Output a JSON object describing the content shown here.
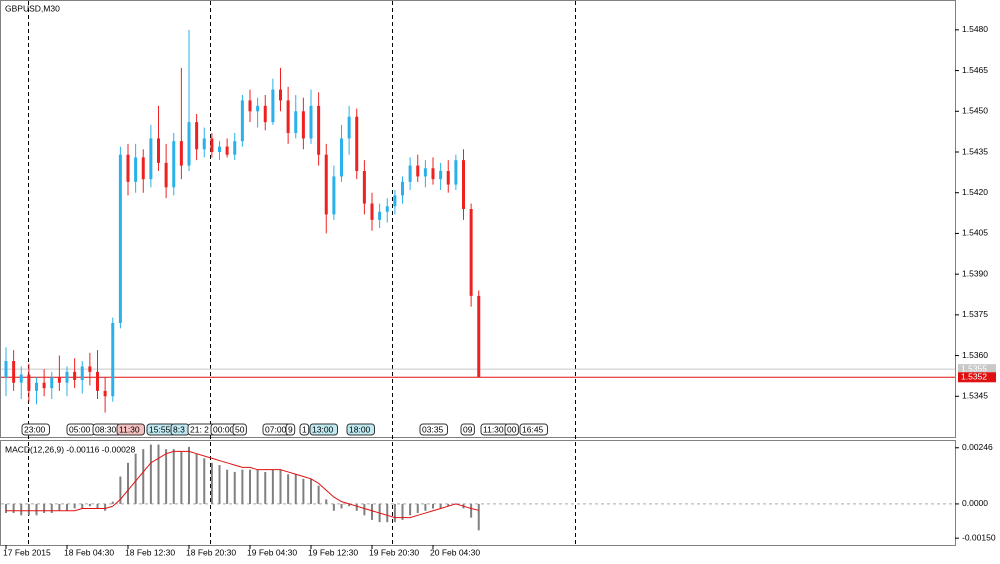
{
  "chart_data": [
    {
      "type": "candlestick",
      "title": "GBPUSD,M30",
      "categories": [
        "17 Feb 2015",
        null,
        null,
        null,
        null,
        null,
        null,
        null,
        "18 Feb 04:30",
        null,
        null,
        null,
        null,
        null,
        null,
        null,
        "18 Feb 12:30",
        null,
        null,
        null,
        null,
        null,
        null,
        null,
        "18 Feb 20:30",
        null,
        null,
        null,
        null,
        null,
        null,
        null,
        "19 Feb 04:30",
        null,
        null,
        null,
        null,
        null,
        null,
        null,
        "19 Feb 12:30",
        null,
        null,
        null,
        null,
        null,
        null,
        null,
        "19 Feb 20:30",
        null,
        null,
        null,
        null,
        null,
        null,
        null,
        "20 Feb 04:30",
        null,
        null,
        null,
        null,
        null,
        null
      ],
      "open": [
        1.5352,
        1.5358,
        1.535,
        1.5353,
        1.5347,
        1.535,
        1.5348,
        1.5352,
        1.535,
        1.5354,
        1.5351,
        1.5356,
        1.5354,
        1.5347,
        1.5345,
        1.5372,
        1.5434,
        1.5424,
        1.5433,
        1.5425,
        1.544,
        1.5431,
        1.5422,
        1.5439,
        1.543,
        1.5446,
        1.5436,
        1.544,
        1.5435,
        1.5437,
        1.5434,
        1.5439,
        1.5454,
        1.545,
        1.5452,
        1.5446,
        1.5458,
        1.5454,
        1.5442,
        1.545,
        1.544,
        1.5452,
        1.5434,
        1.5412,
        1.5426,
        1.544,
        1.5448,
        1.5428,
        1.5416,
        1.541,
        1.5413,
        1.5415,
        1.5419,
        1.5424,
        1.543,
        1.5426,
        1.5429,
        1.5425,
        1.5428,
        1.5423,
        1.5432,
        1.5414,
        1.5382
      ],
      "high": [
        1.5363,
        1.5362,
        1.5356,
        1.5357,
        1.5352,
        1.5355,
        1.5354,
        1.536,
        1.5356,
        1.5359,
        1.5358,
        1.5361,
        1.5362,
        1.5352,
        1.5374,
        1.5437,
        1.5438,
        1.5438,
        1.5436,
        1.5445,
        1.5452,
        1.5438,
        1.5442,
        1.5466,
        1.548,
        1.5449,
        1.5444,
        1.5442,
        1.5439,
        1.544,
        1.5442,
        1.5456,
        1.5458,
        1.5455,
        1.5456,
        1.5462,
        1.5466,
        1.5459,
        1.5456,
        1.5455,
        1.5458,
        1.5457,
        1.5438,
        1.543,
        1.5445,
        1.5452,
        1.5451,
        1.5432,
        1.542,
        1.5416,
        1.5418,
        1.5421,
        1.5426,
        1.5433,
        1.5434,
        1.5432,
        1.5433,
        1.5431,
        1.5432,
        1.5434,
        1.5436,
        1.5416,
        1.5384
      ],
      "low": [
        1.5345,
        1.5347,
        1.5344,
        1.5343,
        1.5342,
        1.5345,
        1.5344,
        1.5347,
        1.5345,
        1.5348,
        1.5346,
        1.5349,
        1.5344,
        1.5339,
        1.5343,
        1.537,
        1.5419,
        1.542,
        1.542,
        1.5422,
        1.5428,
        1.5418,
        1.5419,
        1.5425,
        1.5428,
        1.5432,
        1.5433,
        1.5433,
        1.5432,
        1.5433,
        1.5432,
        1.5437,
        1.5446,
        1.5444,
        1.5443,
        1.5445,
        1.545,
        1.5438,
        1.544,
        1.5436,
        1.5438,
        1.543,
        1.5405,
        1.541,
        1.5424,
        1.5434,
        1.5425,
        1.5412,
        1.5406,
        1.5407,
        1.5409,
        1.5412,
        1.5416,
        1.5421,
        1.5424,
        1.5422,
        1.5423,
        1.5421,
        1.542,
        1.5421,
        1.541,
        1.5378,
        1.5352
      ],
      "close": [
        1.5358,
        1.535,
        1.5353,
        1.5347,
        1.535,
        1.5348,
        1.5352,
        1.535,
        1.5354,
        1.5351,
        1.5356,
        1.5354,
        1.5347,
        1.5345,
        1.5372,
        1.5434,
        1.5424,
        1.5433,
        1.5425,
        1.544,
        1.5431,
        1.5422,
        1.5439,
        1.543,
        1.5446,
        1.5436,
        1.544,
        1.5435,
        1.5437,
        1.5434,
        1.5439,
        1.5454,
        1.545,
        1.5452,
        1.5446,
        1.5458,
        1.5454,
        1.5442,
        1.545,
        1.544,
        1.5452,
        1.5434,
        1.5412,
        1.5426,
        1.544,
        1.5448,
        1.5428,
        1.5416,
        1.541,
        1.5413,
        1.5415,
        1.5419,
        1.5424,
        1.543,
        1.5426,
        1.5429,
        1.5425,
        1.5428,
        1.5423,
        1.5432,
        1.5414,
        1.5382,
        1.5352
      ],
      "up_color": "#2ab0ea",
      "down_color": "#ee2020",
      "ylim": [
        1.533,
        1.5491
      ],
      "yticks": [
        {
          "value": 1.548,
          "label": "1.5480"
        },
        {
          "value": 1.5465,
          "label": "1.5465"
        },
        {
          "value": 1.545,
          "label": "1.5450"
        },
        {
          "value": 1.5435,
          "label": "1.5435"
        },
        {
          "value": 1.542,
          "label": "1.5420"
        },
        {
          "value": 1.5405,
          "label": "1.5405"
        },
        {
          "value": 1.539,
          "label": "1.5390"
        },
        {
          "value": 1.5375,
          "label": "1.5375"
        },
        {
          "value": 1.536,
          "label": "1.5360"
        },
        {
          "value": 1.5345,
          "label": "1.5345"
        }
      ],
      "price_lines": [
        {
          "value": 1.5355,
          "label": "1.5355",
          "color": "#c8c8c8"
        },
        {
          "value": 1.5352,
          "label": "1.5352",
          "color": "#e01010"
        }
      ],
      "session_labels": [
        {
          "text": "23:00",
          "fill": "#ffffff"
        },
        {
          "text": "05:00",
          "fill": "#ffffff"
        },
        {
          "text": "08:30",
          "fill": "#ffffff"
        },
        {
          "text": "11:30",
          "fill": "#f4c0c0"
        },
        {
          "text": "15:55",
          "fill": "#bfeaf2"
        },
        {
          "text": "8:3",
          "fill": "#bfeaf2"
        },
        {
          "text": "21: 2",
          "fill": "#ffffff"
        },
        {
          "text": "00:00",
          "fill": "#ffffff"
        },
        {
          "text": "50",
          "fill": "#ffffff"
        },
        {
          "text": "07:00",
          "fill": "#ffffff"
        },
        {
          "text": "9",
          "fill": "#ffffff"
        },
        {
          "text": "1",
          "fill": "#ffffff"
        },
        {
          "text": "13:00",
          "fill": "#bfeaf2"
        },
        {
          "text": "18:00",
          "fill": "#bfeaf2"
        },
        {
          "text": "03:35",
          "fill": "#ffffff"
        },
        {
          "text": "09",
          "fill": "#ffffff"
        },
        {
          "text": "11:30",
          "fill": "#ffffff"
        },
        {
          "text": "00",
          "fill": "#ffffff"
        },
        {
          "text": "16:45",
          "fill": "#ffffff"
        }
      ]
    },
    {
      "type": "macd",
      "title": "MACD(12,26,9) -0.00116 -0.00028",
      "histogram": {
        "color": "#808080",
        "values": [
          -0.0004,
          -0.0004,
          -0.0005,
          -0.0005,
          -0.0005,
          -0.0004,
          -0.0004,
          -0.0003,
          -0.0003,
          -0.0002,
          -0.0002,
          -0.0001,
          -0.0002,
          -0.0003,
          0.0001,
          0.0012,
          0.0018,
          0.0022,
          0.0024,
          0.0026,
          0.0026,
          0.0024,
          0.0024,
          0.0023,
          0.0025,
          0.0022,
          0.002,
          0.0018,
          0.0017,
          0.0015,
          0.0014,
          0.0015,
          0.0015,
          0.0015,
          0.0014,
          0.0015,
          0.0015,
          0.0013,
          0.0013,
          0.0011,
          0.0011,
          0.0008,
          0.0002,
          -0.0003,
          -0.0002,
          -0.0001,
          -0.0003,
          -0.0005,
          -0.0007,
          -0.0008,
          -0.0008,
          -0.0008,
          -0.0007,
          -0.0005,
          -0.0004,
          -0.0003,
          -0.0002,
          -0.0002,
          -0.0001,
          0.0,
          -0.0002,
          -0.0006,
          -0.00116
        ]
      },
      "signal": {
        "color": "#e01010",
        "values": [
          -0.0003,
          -0.0003,
          -0.0003,
          -0.0003,
          -0.0003,
          -0.0003,
          -0.0003,
          -0.0003,
          -0.0003,
          -0.0003,
          -0.0002,
          -0.0002,
          -0.0002,
          -0.0002,
          -0.0001,
          0.0002,
          0.0006,
          0.001,
          0.0014,
          0.0018,
          0.002,
          0.0022,
          0.0023,
          0.0023,
          0.0023,
          0.0022,
          0.0021,
          0.002,
          0.0019,
          0.0018,
          0.0017,
          0.0016,
          0.0016,
          0.0015,
          0.0015,
          0.0015,
          0.0015,
          0.0014,
          0.0013,
          0.0012,
          0.0011,
          0.0009,
          0.0006,
          0.0003,
          0.0001,
          0.0,
          -0.0001,
          -0.0002,
          -0.0003,
          -0.0004,
          -0.0005,
          -0.0006,
          -0.0006,
          -0.0006,
          -0.0005,
          -0.0004,
          -0.0003,
          -0.0002,
          -0.0001,
          0.0,
          -0.0001,
          -0.0002,
          -0.00028
        ]
      },
      "ylim": [
        -0.0018,
        0.0028
      ],
      "yticks": [
        0.00246,
        {
          "value": 0,
          "label": "0.0000"
        },
        {
          "value": -0.0015,
          "label": "-0.00150"
        }
      ]
    }
  ]
}
